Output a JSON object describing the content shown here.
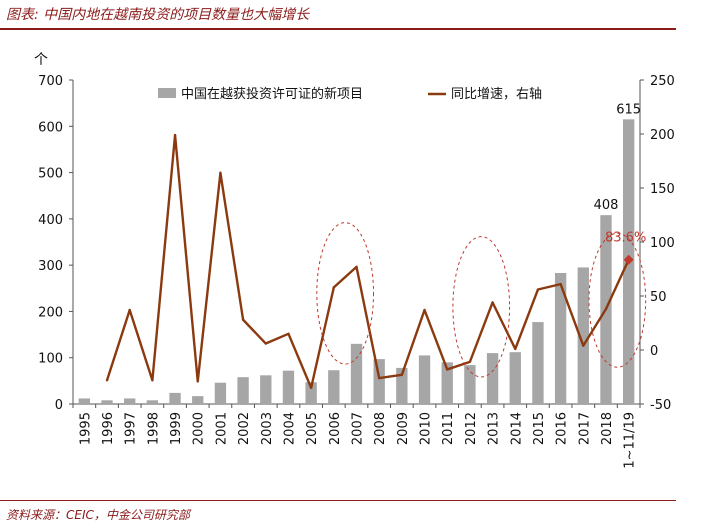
{
  "figure_title": "图表: 中国内地在越南投资的项目数量也大幅增长",
  "source_note": "资料来源：CEIC，中金公司研究部",
  "colors": {
    "bar": "#a6a6a6",
    "line": "#8b3a10",
    "highlight": "#c0392b",
    "rule": "#8b1a1a"
  },
  "chart_data": {
    "type": "bar",
    "title": "",
    "y_left_unit": "个",
    "categories": [
      "1995",
      "1996",
      "1997",
      "1998",
      "1999",
      "2000",
      "2001",
      "2002",
      "2003",
      "2004",
      "2005",
      "2006",
      "2007",
      "2008",
      "2009",
      "2010",
      "2011",
      "2012",
      "2013",
      "2014",
      "2015",
      "2016",
      "2017",
      "2018",
      "1~11/19"
    ],
    "y_left": {
      "min": 0,
      "max": 700,
      "ticks": [
        0,
        100,
        200,
        300,
        400,
        500,
        600,
        700
      ]
    },
    "y_right": {
      "min": -50,
      "max": 250,
      "ticks": [
        -50,
        0,
        50,
        100,
        150,
        200,
        250
      ]
    },
    "grid": false,
    "legend_position": "top",
    "series": [
      {
        "name": "中国在越获投资许可证的新项目",
        "type": "bar",
        "axis": "left",
        "values": [
          12,
          8,
          12,
          8,
          24,
          17,
          46,
          58,
          62,
          72,
          47,
          73,
          130,
          97,
          78,
          105,
          90,
          84,
          110,
          112,
          177,
          283,
          295,
          408,
          615
        ]
      },
      {
        "name": "同比增速，右轴",
        "type": "line",
        "axis": "right",
        "values": [
          null,
          -28,
          37,
          -28,
          199,
          -29,
          164,
          28,
          6,
          15,
          -35,
          58,
          77,
          -26,
          -23,
          37,
          -18,
          -11,
          44,
          1,
          56,
          61,
          4,
          38,
          83.6
        ]
      }
    ],
    "data_labels": [
      {
        "category": "2018",
        "text": "408"
      },
      {
        "category": "1~11/19",
        "text": "615"
      },
      {
        "category": "1~11/19",
        "text": "83.6%"
      }
    ],
    "annotations": [
      "dashed ellipse around 2006-2007",
      "dashed ellipse around 2012-2013",
      "dashed ellipse around 2018-1~11/19"
    ]
  }
}
